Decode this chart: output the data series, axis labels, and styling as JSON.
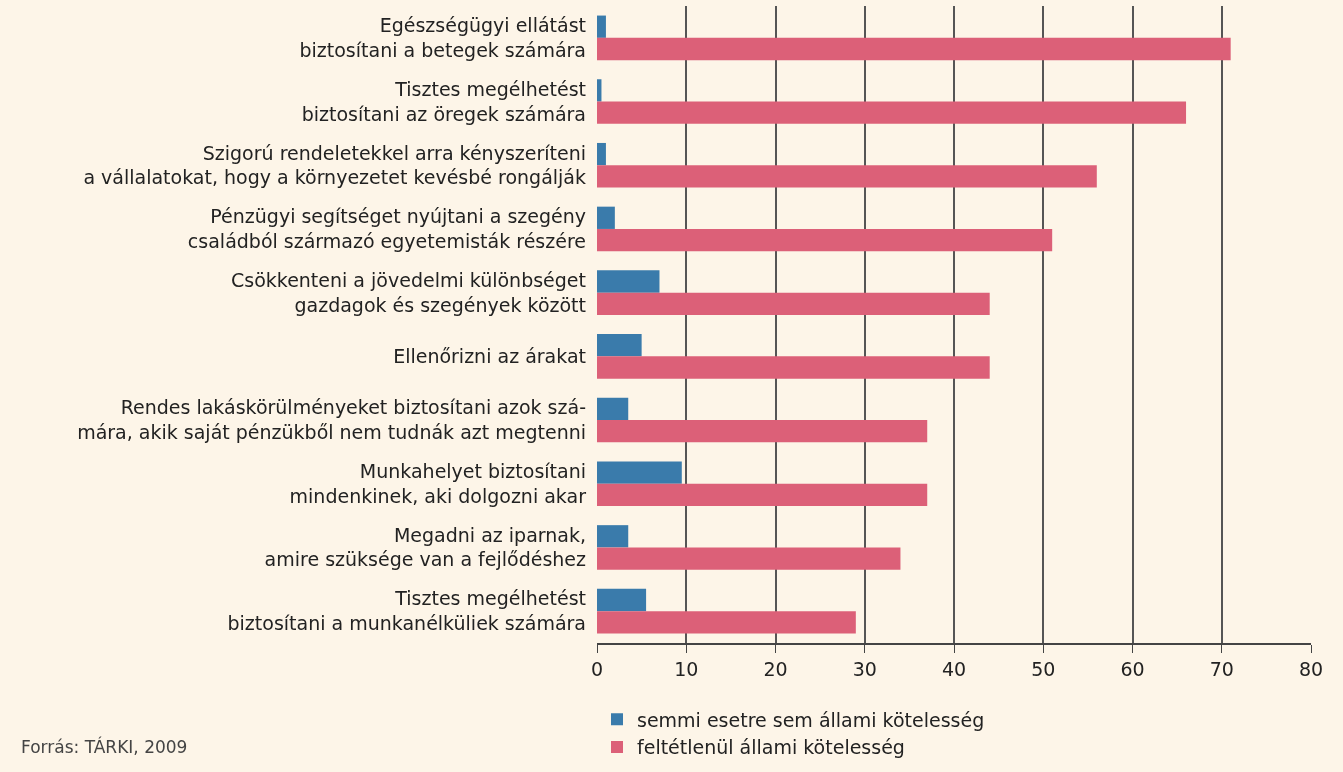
{
  "chart_data": {
    "type": "bar",
    "orientation": "horizontal",
    "categories": [
      "Egészségügyi ellátást\nbiztosítani a betegek számára",
      "Tisztes megélhetést\nbiztosítani az öregek számára",
      "Szigorú rendeletekkel arra kényszeríteni\na vállalatokat, hogy a környezetet kevésbé rongálják",
      "Pénzügyi segítséget nyújtani a szegény\ncsaládból származó egyetemisták részére",
      "Csökkenteni a jövedelmi különbséget\ngazdagok és szegények között",
      "Ellenőrizni az árakat",
      "Rendes lakáskörülményeket biztosítani azok szá-\nmára, akik saját pénzükből nem tudnák azt megtenni",
      "Munkahelyet biztosítani\nmindenkinek, aki dolgozni akar",
      "Megadni az iparnak,\namire szüksége van a fejlődéshez",
      "Tisztes megélhetést\nbiztosítani a munkanélküliek számára"
    ],
    "series": [
      {
        "name": "semmi esetre sem állami kötelesség",
        "color": "#3a7bab",
        "values": [
          1,
          0.5,
          1,
          2,
          7,
          5,
          3.5,
          9.5,
          3.5,
          5.5
        ]
      },
      {
        "name": "feltétlenül állami kötelesség",
        "color": "#dc6078",
        "values": [
          71,
          66,
          56,
          51,
          44,
          44,
          37,
          37,
          34,
          29
        ]
      }
    ],
    "xlim": [
      0,
      80
    ],
    "xticks": [
      0,
      10,
      20,
      30,
      40,
      50,
      60,
      70,
      80
    ],
    "grid": "x",
    "legend": "bottom left",
    "annotations": [
      "Forrás: TÁRKI, 2009"
    ]
  }
}
